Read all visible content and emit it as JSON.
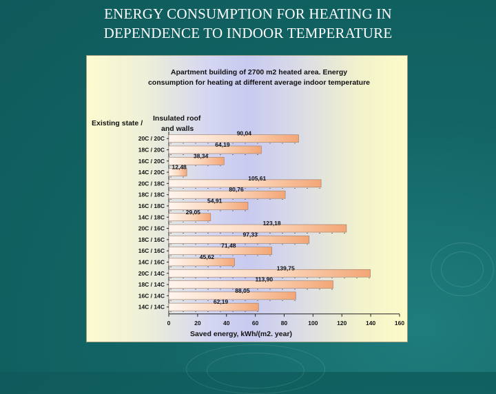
{
  "slide": {
    "title_line1": "ENERGY CONSUMPTION FOR HEATING IN",
    "title_line2": "DEPENDENCE TO INDOOR TEMPERATURE"
  },
  "colors": {
    "background": "#136565",
    "bar_light": "#fff3ea",
    "bar_dark": "#f4a97a",
    "panel": "#fcfbd0"
  },
  "chart_data": {
    "type": "bar",
    "orientation": "horizontal",
    "title_line1": "Apartment building of 2700 m2 heated area.  Energy",
    "title_line2": "consumption for heating at different average indoor temperature",
    "legend_existing": "Existing state /",
    "legend_insulated_line1": "Insulated roof",
    "legend_insulated_line2": "and walls",
    "xlabel": "Saved energy, kWh/(m2. year)",
    "xlim": [
      0,
      160
    ],
    "xticks": [
      "0",
      "20",
      "40",
      "60",
      "80",
      "100",
      "120",
      "140",
      "160"
    ],
    "categories": [
      "20C / 20C",
      "18C / 20C",
      "16C / 20C",
      "14C / 20C",
      "20C / 18C",
      "18C / 18C",
      "16C / 18C",
      "14C / 18C",
      "20C / 16C",
      "18C / 16C",
      "16C / 16C",
      "14C / 16C",
      "20C / 14C",
      "18C / 14C",
      "16C / 14C",
      "14C / 14C"
    ],
    "values": [
      90.04,
      64.19,
      38.34,
      12.48,
      105.61,
      80.76,
      54.91,
      29.05,
      123.18,
      97.33,
      71.48,
      45.62,
      139.75,
      113.9,
      88.05,
      62.19
    ],
    "value_labels": [
      "90,04",
      "64,19",
      "38,34",
      "12,48",
      "105,61",
      "80,76",
      "54,91",
      "29,05",
      "123,18",
      "97,33",
      "71,48",
      "45,62",
      "139,75",
      "113,90",
      "88,05",
      "62,19"
    ]
  }
}
